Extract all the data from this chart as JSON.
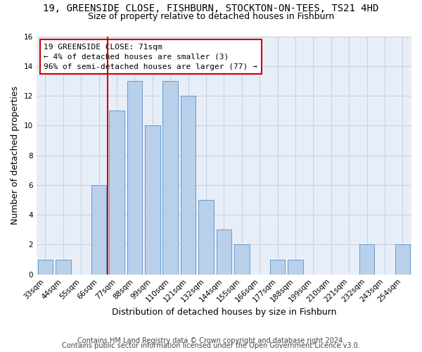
{
  "title": "19, GREENSIDE CLOSE, FISHBURN, STOCKTON-ON-TEES, TS21 4HD",
  "subtitle": "Size of property relative to detached houses in Fishburn",
  "xlabel": "Distribution of detached houses by size in Fishburn",
  "ylabel": "Number of detached properties",
  "bar_labels": [
    "33sqm",
    "44sqm",
    "55sqm",
    "66sqm",
    "77sqm",
    "88sqm",
    "99sqm",
    "110sqm",
    "121sqm",
    "132sqm",
    "144sqm",
    "155sqm",
    "166sqm",
    "177sqm",
    "188sqm",
    "199sqm",
    "210sqm",
    "221sqm",
    "232sqm",
    "243sqm",
    "254sqm"
  ],
  "bar_values": [
    1,
    1,
    0,
    6,
    11,
    13,
    10,
    13,
    12,
    5,
    3,
    2,
    0,
    1,
    1,
    0,
    0,
    0,
    2,
    0,
    2
  ],
  "bar_color": "#b8d0ea",
  "bar_edge_color": "#6699cc",
  "annotation_text": "19 GREENSIDE CLOSE: 71sqm\n← 4% of detached houses are smaller (3)\n96% of semi-detached houses are larger (77) →",
  "annotation_box_color": "#ffffff",
  "annotation_box_edge_color": "#cc0000",
  "vline_color": "#cc0000",
  "vline_bin_index": 3,
  "ylim": [
    0,
    16
  ],
  "yticks": [
    0,
    2,
    4,
    6,
    8,
    10,
    12,
    14,
    16
  ],
  "grid_color": "#c8cfe0",
  "bg_color": "#e8eef8",
  "footer_line1": "Contains HM Land Registry data © Crown copyright and database right 2024.",
  "footer_line2": "Contains public sector information licensed under the Open Government Licence v3.0.",
  "title_fontsize": 10,
  "subtitle_fontsize": 9,
  "xlabel_fontsize": 9,
  "ylabel_fontsize": 9,
  "tick_fontsize": 7.5,
  "footer_fontsize": 7,
  "annotation_fontsize": 8
}
